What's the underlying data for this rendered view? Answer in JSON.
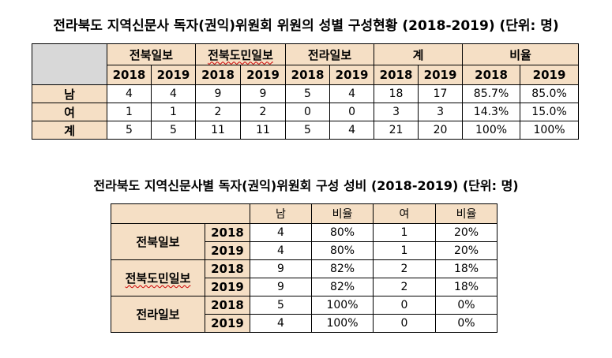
{
  "table1": {
    "title": "전라북도 지역신문사 독자(권익)위원회 위원의 성별 구성현황 (2018-2019) (단위: 명)",
    "groups": [
      "전북일보",
      "전북도민일보",
      "전라일보",
      "계",
      "비율"
    ],
    "years": [
      "2018",
      "2019"
    ],
    "rows": [
      {
        "label": "남",
        "cells": [
          "4",
          "4",
          "9",
          "9",
          "5",
          "4",
          "18",
          "17",
          "85.7%",
          "85.0%"
        ]
      },
      {
        "label": "여",
        "cells": [
          "1",
          "1",
          "2",
          "2",
          "0",
          "0",
          "3",
          "3",
          "14.3%",
          "15.0%"
        ]
      },
      {
        "label": "계",
        "cells": [
          "5",
          "5",
          "11",
          "11",
          "5",
          "4",
          "21",
          "20",
          "100%",
          "100%"
        ]
      }
    ]
  },
  "table2": {
    "title": "전라북도 지역신문사별 독자(권익)위원회 구성 성비 (2018-2019) (단위: 명)",
    "headers": [
      "남",
      "비율",
      "여",
      "비율"
    ],
    "papers": [
      {
        "name": "전북일보",
        "rows": [
          {
            "year": "2018",
            "cells": [
              "4",
              "80%",
              "1",
              "20%"
            ]
          },
          {
            "year": "2019",
            "cells": [
              "4",
              "80%",
              "1",
              "20%"
            ]
          }
        ]
      },
      {
        "name": "전북도민일보",
        "rows": [
          {
            "year": "2018",
            "cells": [
              "9",
              "82%",
              "2",
              "18%"
            ]
          },
          {
            "year": "2019",
            "cells": [
              "9",
              "82%",
              "2",
              "18%"
            ]
          }
        ]
      },
      {
        "name": "전라일보",
        "rows": [
          {
            "year": "2018",
            "cells": [
              "5",
              "100%",
              "0",
              "0%"
            ]
          },
          {
            "year": "2019",
            "cells": [
              "4",
              "100%",
              "0",
              "0%"
            ]
          }
        ]
      }
    ]
  },
  "colors": {
    "header_shade": "#f5dfc5",
    "corner_shade": "#d8d8d8",
    "spellcheck_underline": "#cc0000"
  }
}
